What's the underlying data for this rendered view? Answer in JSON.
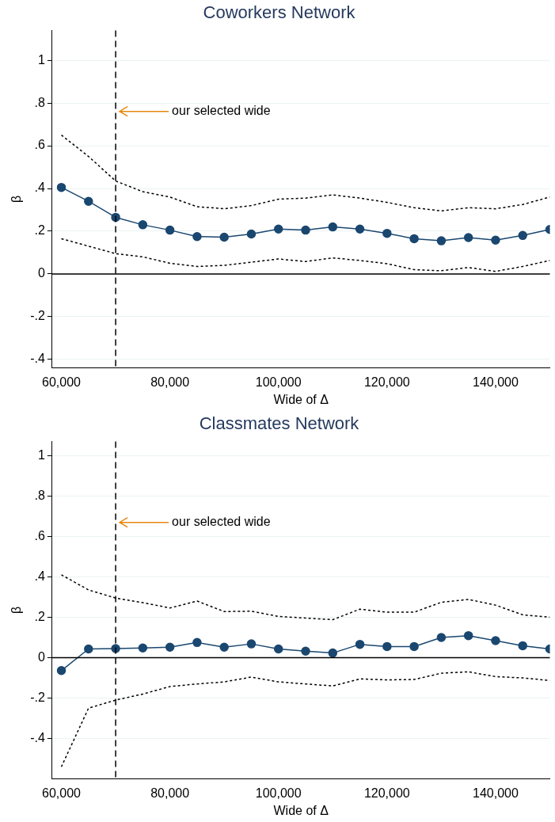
{
  "chart_data": [
    {
      "type": "line",
      "title": "Coworkers Network",
      "xlabel": "Wide of Δ",
      "ylabel": "β",
      "x": [
        60000,
        65000,
        70000,
        75000,
        80000,
        85000,
        90000,
        95000,
        100000,
        105000,
        110000,
        115000,
        120000,
        125000,
        130000,
        135000,
        140000,
        145000,
        150000
      ],
      "series": [
        {
          "color": "#1a476f",
          "marker": "circle",
          "line_style": "solid",
          "values": [
            0.405,
            0.34,
            0.265,
            0.23,
            0.205,
            0.175,
            0.172,
            0.187,
            0.21,
            0.205,
            0.22,
            0.21,
            0.19,
            0.165,
            0.155,
            0.17,
            0.158,
            0.18,
            0.208
          ]
        },
        {
          "color": "#000000",
          "marker": "none",
          "line_style": "dotted",
          "values": [
            0.65,
            0.55,
            0.435,
            0.385,
            0.36,
            0.315,
            0.305,
            0.32,
            0.35,
            0.355,
            0.37,
            0.355,
            0.335,
            0.31,
            0.295,
            0.31,
            0.305,
            0.325,
            0.36
          ]
        },
        {
          "color": "#000000",
          "marker": "none",
          "line_style": "dotted",
          "values": [
            0.165,
            0.13,
            0.095,
            0.08,
            0.05,
            0.035,
            0.04,
            0.055,
            0.07,
            0.058,
            0.075,
            0.063,
            0.048,
            0.02,
            0.015,
            0.03,
            0.012,
            0.035,
            0.063
          ]
        }
      ],
      "xlim": [
        58300,
        150000
      ],
      "xticks": [
        {
          "value": 60000,
          "label": "60,000"
        },
        {
          "value": 80000,
          "label": "80,000"
        },
        {
          "value": 100000,
          "label": "100,000"
        },
        {
          "value": 120000,
          "label": "120,000"
        },
        {
          "value": 140000,
          "label": "140,000"
        }
      ],
      "ylim": [
        -0.44,
        1.14
      ],
      "yticks": [
        {
          "value": -0.4,
          "label": "-.4"
        },
        {
          "value": -0.2,
          "label": "-.2"
        },
        {
          "value": 0,
          "label": "0"
        },
        {
          "value": 0.2,
          "label": ".2"
        },
        {
          "value": 0.4,
          "label": ".4"
        },
        {
          "value": 0.6,
          "label": ".6"
        },
        {
          "value": 0.8,
          "label": ".8"
        },
        {
          "value": 1,
          "label": "1"
        }
      ],
      "grid": "y",
      "legend": false,
      "ref_lines": [
        {
          "axis": "x",
          "value": 70000,
          "color": "#000000",
          "line_style": "dashed",
          "label": "our selected wide"
        },
        {
          "axis": "y",
          "value": 0,
          "color": "#000000",
          "line_style": "solid"
        }
      ]
    },
    {
      "type": "line",
      "title": "Classmates Network",
      "xlabel": "Wide of Δ",
      "ylabel": "β",
      "x": [
        60000,
        65000,
        70000,
        75000,
        80000,
        85000,
        90000,
        95000,
        100000,
        105000,
        110000,
        115000,
        120000,
        125000,
        130000,
        135000,
        140000,
        145000,
        150000
      ],
      "series": [
        {
          "color": "#1a476f",
          "marker": "circle",
          "line_style": "solid",
          "values": [
            -0.064,
            0.043,
            0.045,
            0.048,
            0.052,
            0.075,
            0.052,
            0.068,
            0.043,
            0.032,
            0.023,
            0.066,
            0.055,
            0.055,
            0.1,
            0.109,
            0.084,
            0.059,
            0.043
          ]
        },
        {
          "color": "#000000",
          "marker": "none",
          "line_style": "dotted",
          "values": [
            0.41,
            0.335,
            0.295,
            0.272,
            0.246,
            0.28,
            0.228,
            0.23,
            0.204,
            0.196,
            0.188,
            0.24,
            0.225,
            0.225,
            0.274,
            0.288,
            0.26,
            0.212,
            0.2
          ]
        },
        {
          "color": "#000000",
          "marker": "none",
          "line_style": "dotted",
          "values": [
            -0.54,
            -0.25,
            -0.21,
            -0.18,
            -0.143,
            -0.13,
            -0.12,
            -0.096,
            -0.12,
            -0.13,
            -0.14,
            -0.105,
            -0.11,
            -0.108,
            -0.077,
            -0.07,
            -0.094,
            -0.1,
            -0.113
          ]
        }
      ],
      "xlim": [
        58300,
        150000
      ],
      "xticks": [
        {
          "value": 60000,
          "label": "60,000"
        },
        {
          "value": 80000,
          "label": "80,000"
        },
        {
          "value": 100000,
          "label": "100,000"
        },
        {
          "value": 120000,
          "label": "120,000"
        },
        {
          "value": 140000,
          "label": "140,000"
        }
      ],
      "ylim": [
        -0.6,
        1.07
      ],
      "yticks": [
        {
          "value": -0.4,
          "label": "-.4"
        },
        {
          "value": -0.2,
          "label": "-.2"
        },
        {
          "value": 0,
          "label": "0"
        },
        {
          "value": 0.2,
          "label": ".2"
        },
        {
          "value": 0.4,
          "label": ".4"
        },
        {
          "value": 0.6,
          "label": ".6"
        },
        {
          "value": 0.8,
          "label": ".8"
        },
        {
          "value": 1,
          "label": "1"
        }
      ],
      "grid": "y",
      "legend": false,
      "ref_lines": [
        {
          "axis": "x",
          "value": 70000,
          "color": "#000000",
          "line_style": "dashed",
          "label": "our selected wide"
        },
        {
          "axis": "y",
          "value": 0,
          "color": "#000000",
          "line_style": "solid"
        }
      ]
    }
  ]
}
